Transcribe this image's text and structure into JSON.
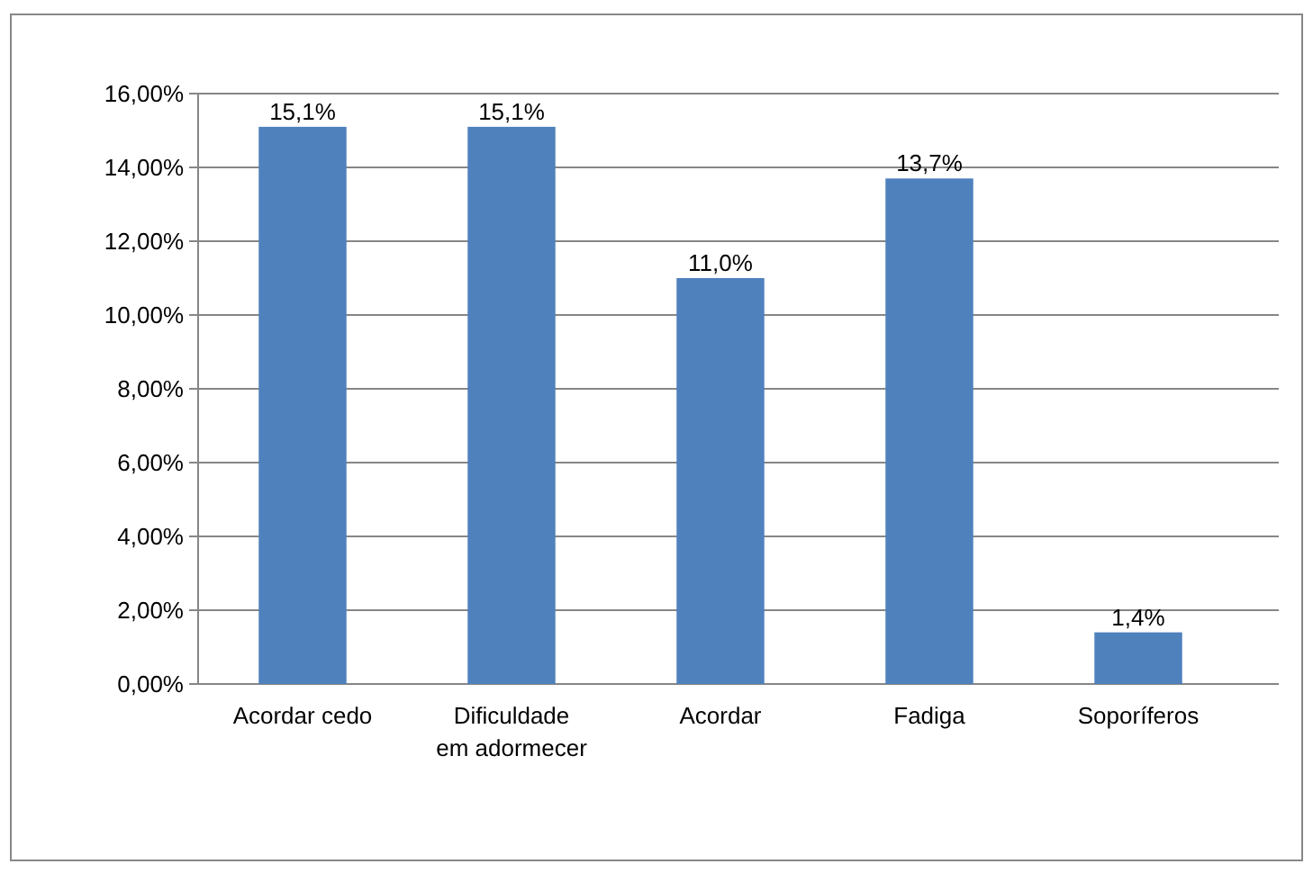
{
  "chart_data": {
    "type": "bar",
    "categories": [
      "Acordar cedo",
      "Dificuldade em adormecer",
      "Acordar",
      "Fadiga",
      "Soporíferos"
    ],
    "values": [
      15.1,
      15.1,
      11.0,
      13.7,
      1.4
    ],
    "color": "#4f81bd",
    "value_labels": [
      "15,1%",
      "15,1%",
      "11,0%",
      "13,7%",
      "1,4%"
    ],
    "ylim": [
      0,
      16
    ],
    "yticks": [
      {
        "value": 0,
        "label": "0,00%"
      },
      {
        "value": 2,
        "label": "2,00%"
      },
      {
        "value": 4,
        "label": "4,00%"
      },
      {
        "value": 6,
        "label": "6,00%"
      },
      {
        "value": 8,
        "label": "8,00%"
      },
      {
        "value": 10,
        "label": "10,00%"
      },
      {
        "value": 12,
        "label": "12,00%"
      },
      {
        "value": 14,
        "label": "14,00%"
      },
      {
        "value": 16,
        "label": "16,00%"
      }
    ],
    "grid": "y"
  }
}
